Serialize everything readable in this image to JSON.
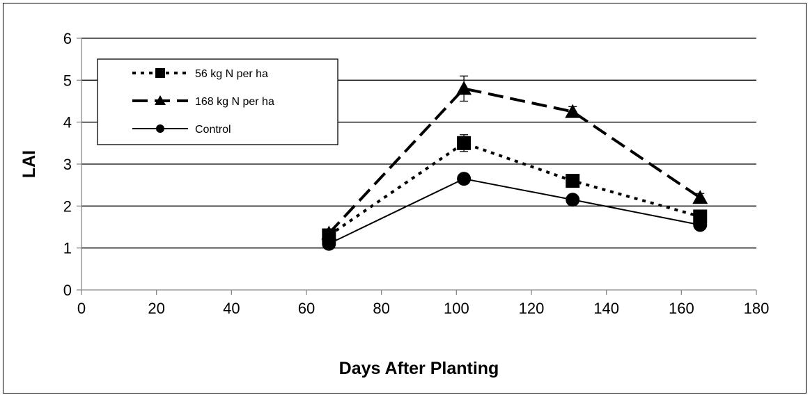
{
  "chart_data": {
    "type": "line",
    "title": "",
    "xlabel": "Days After Planting",
    "ylabel": "LAI",
    "xlim": [
      0,
      180
    ],
    "ylim": [
      0,
      6
    ],
    "xticks": [
      0,
      20,
      40,
      60,
      80,
      100,
      120,
      140,
      160,
      180
    ],
    "yticks": [
      0,
      1,
      2,
      3,
      4,
      5,
      6
    ],
    "grid": "horizontal",
    "legend_position": "top-left",
    "series": [
      {
        "name": "56 kg N per ha",
        "marker": "square",
        "line_style": "dotted",
        "color": "#000000",
        "x": [
          66,
          102,
          131,
          165
        ],
        "y": [
          1.3,
          3.5,
          2.6,
          1.75
        ],
        "error": [
          0.12,
          0.2,
          0.1,
          0.1
        ]
      },
      {
        "name": "168 kg N per ha",
        "marker": "triangle",
        "line_style": "dashed",
        "color": "#000000",
        "x": [
          66,
          102,
          131,
          165
        ],
        "y": [
          1.35,
          4.8,
          4.25,
          2.2
        ],
        "error": [
          0.1,
          0.3,
          0.12,
          0.1
        ]
      },
      {
        "name": "Control",
        "marker": "circle",
        "line_style": "solid",
        "color": "#000000",
        "x": [
          66,
          102,
          131,
          165
        ],
        "y": [
          1.1,
          2.65,
          2.15,
          1.55
        ],
        "error": [
          0.05,
          0.05,
          0.05,
          0.12
        ]
      }
    ]
  }
}
